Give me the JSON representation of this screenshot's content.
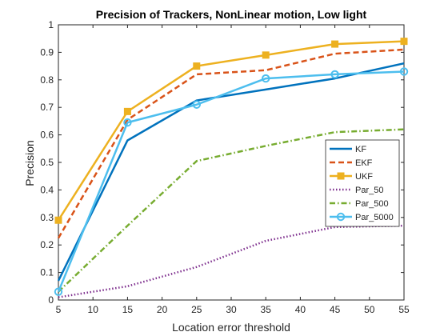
{
  "chart_data": {
    "type": "line",
    "title": "Precision of Trackers, NonLinear motion, Low light",
    "xlabel": "Location error threshold",
    "ylabel": "Precision",
    "xlim": [
      5,
      55
    ],
    "ylim": [
      0,
      1
    ],
    "xticks": [
      5,
      10,
      15,
      20,
      25,
      30,
      35,
      40,
      45,
      50,
      55
    ],
    "yticks": [
      0,
      0.1,
      0.2,
      0.3,
      0.4,
      0.5,
      0.6,
      0.7,
      0.8,
      0.9,
      1
    ],
    "ytick_labels": [
      "0",
      "0.1",
      "0.2",
      "0.3",
      "0.4",
      "0.5",
      "0.6",
      "0.7",
      "0.8",
      "0.9",
      "1"
    ],
    "grid": false,
    "legend_position": "center-right",
    "x": [
      5,
      15,
      25,
      35,
      45,
      55
    ],
    "series": [
      {
        "name": "KF",
        "values": [
          0.07,
          0.58,
          0.725,
          0.765,
          0.805,
          0.86
        ],
        "color": "#0072BD",
        "line_style": "solid",
        "marker": "none"
      },
      {
        "name": "EKF",
        "values": [
          0.225,
          0.655,
          0.82,
          0.835,
          0.895,
          0.91
        ],
        "color": "#D95319",
        "line_style": "dashed",
        "marker": "none"
      },
      {
        "name": "UKF",
        "values": [
          0.29,
          0.685,
          0.85,
          0.89,
          0.93,
          0.94
        ],
        "color": "#EDB120",
        "line_style": "solid",
        "marker": "square"
      },
      {
        "name": "Par_50",
        "values": [
          0.01,
          0.05,
          0.12,
          0.215,
          0.265,
          0.27
        ],
        "color": "#7E2F8E",
        "line_style": "dotted",
        "marker": "none"
      },
      {
        "name": "Par_500",
        "values": [
          0.03,
          0.27,
          0.505,
          0.56,
          0.61,
          0.62
        ],
        "color": "#77AC30",
        "line_style": "dashdot",
        "marker": "none"
      },
      {
        "name": "Par_5000",
        "values": [
          0.03,
          0.645,
          0.71,
          0.805,
          0.82,
          0.83
        ],
        "color": "#4DBEEE",
        "line_style": "solid",
        "marker": "circle"
      }
    ]
  }
}
